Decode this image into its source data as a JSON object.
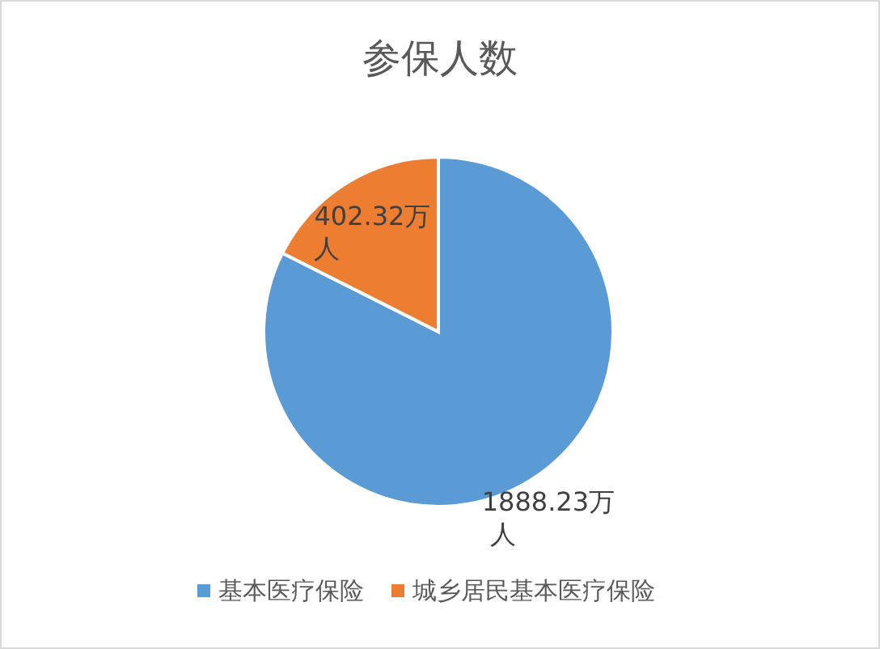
{
  "chart_data": {
    "type": "pie",
    "title": "参保人数",
    "categories": [
      "基本医疗保险",
      "城乡居民基本医疗保险"
    ],
    "values": [
      1888.23,
      402.32
    ],
    "colors": [
      "#5b9bd5",
      "#ed7d31"
    ],
    "value_labels": [
      "1888.23万人",
      "402.32万人"
    ],
    "legend": "bottom"
  }
}
